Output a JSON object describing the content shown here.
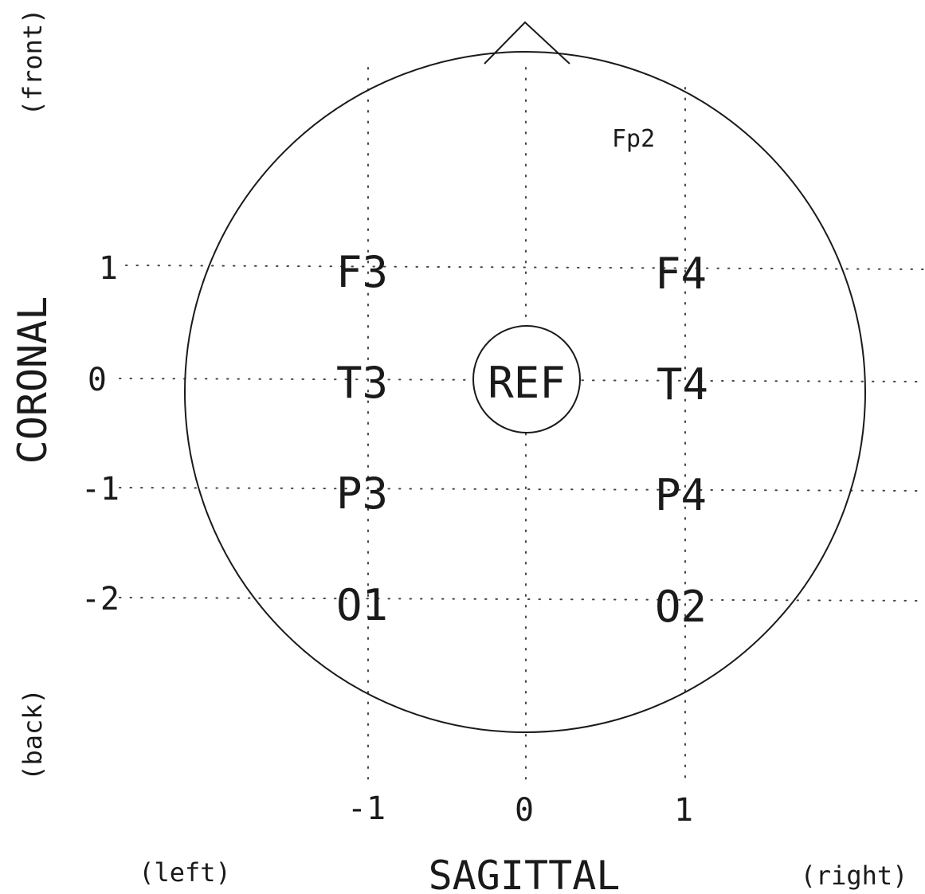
{
  "axes": {
    "coronal_title": "CORONAL",
    "sagittal_title": "SAGITTAL",
    "coronal_ticks": [
      "1",
      "0",
      "-1",
      "-2"
    ],
    "sagittal_ticks": [
      "-1",
      "0",
      "1"
    ],
    "direction_labels": {
      "front": "(front)",
      "back": "(back)",
      "left": "(left)",
      "right": "(right)"
    }
  },
  "electrodes": {
    "fp2": "Fp2",
    "f3": "F3",
    "f4": "F4",
    "t3": "T3",
    "ref": "REF",
    "t4": "T4",
    "p3": "P3",
    "p4": "P4",
    "o1": "O1",
    "o2": "O2"
  },
  "colors": {
    "ink": "#1a1a1a",
    "grid": "#444444",
    "background": "#ffffff"
  }
}
